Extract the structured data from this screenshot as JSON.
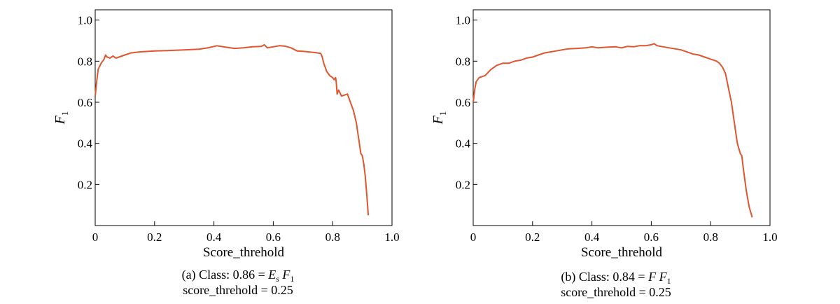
{
  "chart_data": [
    {
      "type": "line",
      "title": "",
      "xlabel": "Score_threhold",
      "ylabel": "F",
      "ylabel_sub": "1",
      "xlim": [
        0,
        1.0
      ],
      "ylim": [
        0,
        1.05
      ],
      "xticks": [
        "0",
        "0.2",
        "0.4",
        "0.6",
        "0.8",
        "1.0"
      ],
      "xtick_values": [
        0,
        0.2,
        0.4,
        0.6,
        0.8,
        1.0
      ],
      "yticks": [
        "0.2",
        "0.4",
        "0.6",
        "0.8",
        "1.0"
      ],
      "ytick_values": [
        0.2,
        0.4,
        0.6,
        0.8,
        1.0
      ],
      "grid": false,
      "line_color": "#e0552e",
      "caption_line1_prefix": "(a) Class: 0.86 = ",
      "caption_line1_symbol": "E",
      "caption_line1_symbol_sub": "s",
      "caption_line1_f": "F",
      "caption_line1_f_sub": "1",
      "caption_line2": "score_threhold = 0.25",
      "series": [
        {
          "x": [
            0.0,
            0.005,
            0.01,
            0.02,
            0.03,
            0.035,
            0.04,
            0.05,
            0.06,
            0.07,
            0.08,
            0.1,
            0.12,
            0.15,
            0.2,
            0.25,
            0.3,
            0.35,
            0.38,
            0.41,
            0.44,
            0.47,
            0.5,
            0.53,
            0.56,
            0.57,
            0.58,
            0.6,
            0.62,
            0.64,
            0.66,
            0.68,
            0.7,
            0.72,
            0.74,
            0.76,
            0.765,
            0.77,
            0.775,
            0.78,
            0.79,
            0.8,
            0.805,
            0.81,
            0.812,
            0.815,
            0.82,
            0.83,
            0.84,
            0.85,
            0.86,
            0.87,
            0.875,
            0.88,
            0.885,
            0.89,
            0.895,
            0.9,
            0.905,
            0.91,
            0.915,
            0.92
          ],
          "y": [
            0.63,
            0.7,
            0.76,
            0.79,
            0.81,
            0.83,
            0.82,
            0.815,
            0.825,
            0.815,
            0.82,
            0.83,
            0.84,
            0.845,
            0.85,
            0.852,
            0.855,
            0.858,
            0.865,
            0.875,
            0.868,
            0.862,
            0.865,
            0.87,
            0.872,
            0.88,
            0.865,
            0.87,
            0.875,
            0.873,
            0.865,
            0.85,
            0.848,
            0.845,
            0.842,
            0.838,
            0.82,
            0.79,
            0.77,
            0.75,
            0.73,
            0.72,
            0.71,
            0.72,
            0.7,
            0.64,
            0.66,
            0.63,
            0.635,
            0.64,
            0.6,
            0.56,
            0.53,
            0.5,
            0.45,
            0.4,
            0.35,
            0.34,
            0.3,
            0.24,
            0.15,
            0.05
          ]
        }
      ]
    },
    {
      "type": "line",
      "title": "",
      "xlabel": "Score_threhold",
      "ylabel": "F",
      "ylabel_sub": "1",
      "xlim": [
        0,
        1.0
      ],
      "ylim": [
        0,
        1.05
      ],
      "xticks": [
        "0",
        "0.2",
        "0.4",
        "0.6",
        "0.8",
        "1.0"
      ],
      "xtick_values": [
        0,
        0.2,
        0.4,
        0.6,
        0.8,
        1.0
      ],
      "yticks": [
        "0.2",
        "0.4",
        "0.6",
        "0.8",
        "1.0"
      ],
      "ytick_values": [
        0.2,
        0.4,
        0.6,
        0.8,
        1.0
      ],
      "grid": false,
      "line_color": "#e0552e",
      "caption_line1_prefix": "(b) Class: 0.84 = ",
      "caption_line1_symbol": "F",
      "caption_line1_symbol_sub": "",
      "caption_line1_f": "F",
      "caption_line1_f_sub": "1",
      "caption_line2": "score_threhold = 0.25",
      "series": [
        {
          "x": [
            0.0,
            0.005,
            0.01,
            0.02,
            0.03,
            0.04,
            0.05,
            0.06,
            0.08,
            0.1,
            0.12,
            0.14,
            0.16,
            0.18,
            0.2,
            0.22,
            0.24,
            0.26,
            0.28,
            0.3,
            0.32,
            0.35,
            0.38,
            0.4,
            0.42,
            0.45,
            0.48,
            0.5,
            0.52,
            0.54,
            0.56,
            0.58,
            0.6,
            0.61,
            0.62,
            0.64,
            0.66,
            0.68,
            0.7,
            0.72,
            0.74,
            0.76,
            0.78,
            0.8,
            0.82,
            0.83,
            0.84,
            0.85,
            0.86,
            0.87,
            0.875,
            0.88,
            0.885,
            0.89,
            0.9,
            0.905,
            0.91,
            0.92,
            0.93,
            0.94
          ],
          "y": [
            0.6,
            0.66,
            0.7,
            0.72,
            0.725,
            0.73,
            0.745,
            0.76,
            0.78,
            0.79,
            0.79,
            0.8,
            0.805,
            0.815,
            0.82,
            0.83,
            0.84,
            0.845,
            0.85,
            0.855,
            0.86,
            0.862,
            0.865,
            0.87,
            0.865,
            0.868,
            0.87,
            0.865,
            0.872,
            0.87,
            0.875,
            0.875,
            0.88,
            0.885,
            0.875,
            0.87,
            0.865,
            0.86,
            0.855,
            0.845,
            0.835,
            0.83,
            0.82,
            0.81,
            0.8,
            0.79,
            0.77,
            0.74,
            0.67,
            0.6,
            0.55,
            0.5,
            0.45,
            0.4,
            0.35,
            0.34,
            0.28,
            0.17,
            0.09,
            0.04
          ]
        }
      ]
    }
  ]
}
